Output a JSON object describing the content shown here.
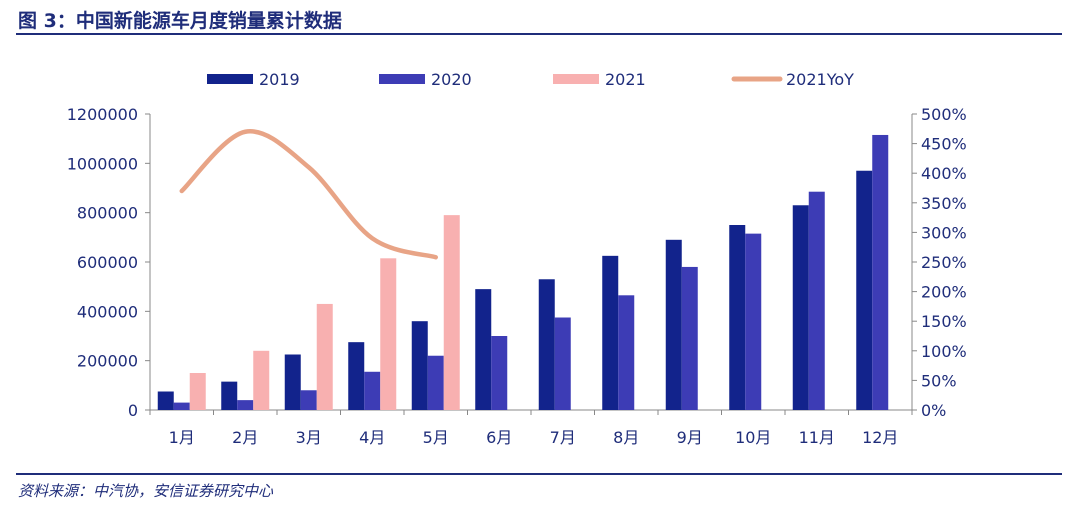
{
  "title": "图 3：中国新能源车月度销量累计数据",
  "source": "资料来源：中汽协，安信证券研究中心",
  "colors": {
    "s2019": "#12238c",
    "s2020": "#3d3cb5",
    "s2021": "#f8b0b0",
    "yoy": "#e8a486",
    "axis": "#888888",
    "text": "#1f2d7a"
  },
  "chart_data": {
    "type": "bar",
    "categories": [
      "1月",
      "2月",
      "3月",
      "4月",
      "5月",
      "6月",
      "7月",
      "8月",
      "9月",
      "10月",
      "11月",
      "12月"
    ],
    "series": [
      {
        "name": "2019",
        "values": [
          75000,
          115000,
          225000,
          275000,
          360000,
          490000,
          530000,
          625000,
          690000,
          750000,
          830000,
          970000
        ]
      },
      {
        "name": "2020",
        "values": [
          30000,
          40000,
          80000,
          155000,
          220000,
          300000,
          375000,
          465000,
          580000,
          715000,
          885000,
          1115000
        ]
      },
      {
        "name": "2021",
        "values": [
          150000,
          240000,
          430000,
          615000,
          790000,
          null,
          null,
          null,
          null,
          null,
          null,
          null
        ]
      }
    ],
    "line_series": {
      "name": "2021YoY",
      "axis": "right",
      "values": [
        370,
        470,
        410,
        290,
        258
      ]
    },
    "yleft": {
      "min": 0,
      "max": 1200000,
      "step": 200000,
      "ticks": [
        "0",
        "200000",
        "400000",
        "600000",
        "800000",
        "1000000",
        "1200000"
      ]
    },
    "yright": {
      "min": 0,
      "max": 500,
      "step": 50,
      "ticks": [
        "0%",
        "50%",
        "100%",
        "150%",
        "200%",
        "250%",
        "300%",
        "350%",
        "400%",
        "450%",
        "500%"
      ]
    },
    "legend": [
      "2019",
      "2020",
      "2021",
      "2021YoY"
    ],
    "legend_position": "top"
  }
}
